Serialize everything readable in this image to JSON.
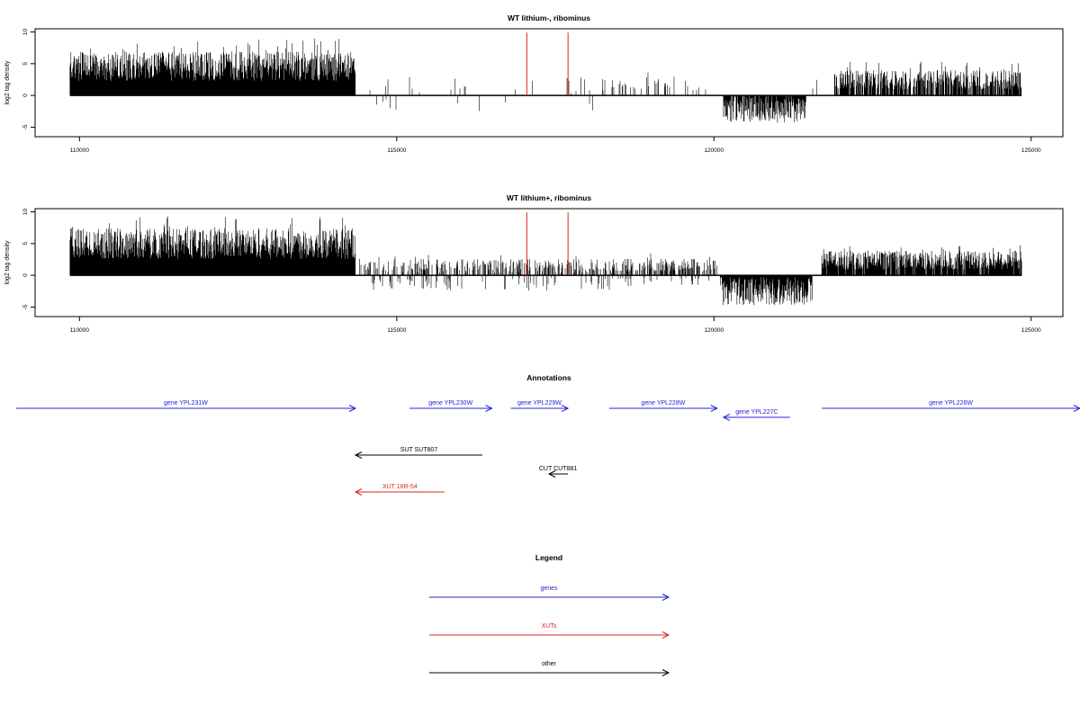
{
  "colors": {
    "axis": "#000000",
    "signal": "#000000",
    "marker": "#dd2222",
    "gene": "#2424d6",
    "xut": "#dd2222",
    "other": "#000000"
  },
  "chart_data": [
    {
      "type": "bar",
      "title": "WT lithium-, ribominus",
      "xlabel": "",
      "ylabel": "log2 tag density",
      "xlim": [
        109300,
        125500
      ],
      "ylim": [
        -6.5,
        10.5
      ],
      "xticks": [
        110000,
        115000,
        120000,
        125000
      ],
      "xtick_labels": [
        "110000",
        "115000",
        "120000",
        "125000"
      ],
      "yticks": [
        -5,
        0,
        5,
        10
      ],
      "ytick_labels": [
        "-5",
        "0",
        "5",
        "10"
      ],
      "markers": [
        117050,
        117700
      ],
      "segments": [
        {
          "start": 109850,
          "end": 114350,
          "mean": 4.6,
          "amp": 2.3,
          "sign": 1,
          "density": 1.0
        },
        {
          "start": 114400,
          "end": 118300,
          "mean": 1.6,
          "amp": 1.4,
          "sign": 1,
          "density": 0.03
        },
        {
          "start": 114400,
          "end": 118300,
          "mean": -1.5,
          "amp": 1.0,
          "sign": -1,
          "density": 0.02
        },
        {
          "start": 118350,
          "end": 120050,
          "mean": 1.9,
          "amp": 1.1,
          "sign": 1,
          "density": 0.12
        },
        {
          "start": 120150,
          "end": 121450,
          "mean": -2.3,
          "amp": 2.0,
          "sign": -1,
          "density": 0.9
        },
        {
          "start": 121500,
          "end": 121900,
          "mean": 1.6,
          "amp": 1.0,
          "sign": 1,
          "density": 0.05
        },
        {
          "start": 121900,
          "end": 124850,
          "mean": 2.5,
          "amp": 1.5,
          "sign": 1,
          "density": 0.8
        }
      ]
    },
    {
      "type": "bar",
      "title": "WT lithium+, ribominus",
      "xlabel": "",
      "ylabel": "log2 tag density",
      "xlim": [
        109300,
        125500
      ],
      "ylim": [
        -6.5,
        10.5
      ],
      "xticks": [
        110000,
        115000,
        120000,
        125000
      ],
      "xtick_labels": [
        "110000",
        "115000",
        "120000",
        "125000"
      ],
      "yticks": [
        -5,
        0,
        5,
        10
      ],
      "ytick_labels": [
        "-5",
        "0",
        "5",
        "10"
      ],
      "markers": [
        117050,
        117700
      ],
      "segments": [
        {
          "start": 109850,
          "end": 114350,
          "mean": 5.0,
          "amp": 2.4,
          "sign": 1,
          "density": 1.0
        },
        {
          "start": 114400,
          "end": 118400,
          "mean": 1.5,
          "amp": 1.1,
          "sign": 1,
          "density": 0.35
        },
        {
          "start": 114400,
          "end": 118400,
          "mean": -1.4,
          "amp": 1.0,
          "sign": -1,
          "density": 0.12
        },
        {
          "start": 118400,
          "end": 120050,
          "mean": 1.6,
          "amp": 1.0,
          "sign": 1,
          "density": 0.55
        },
        {
          "start": 118400,
          "end": 120050,
          "mean": -1.0,
          "amp": 0.7,
          "sign": -1,
          "density": 0.08
        },
        {
          "start": 120100,
          "end": 121550,
          "mean": -2.5,
          "amp": 2.2,
          "sign": -1,
          "density": 1.0
        },
        {
          "start": 121700,
          "end": 124850,
          "mean": 2.4,
          "amp": 1.5,
          "sign": 1,
          "density": 0.9
        }
      ]
    }
  ],
  "annotations": {
    "title": "Annotations",
    "xlim": [
      109300,
      125500
    ],
    "items": [
      {
        "label": "gene YPL231W",
        "kind": "gene",
        "start": 109000,
        "end": 114350,
        "dir": "right",
        "row": 0
      },
      {
        "label": "gene YPL230W",
        "kind": "gene",
        "start": 115200,
        "end": 116500,
        "dir": "right",
        "row": 0
      },
      {
        "label": "gene YPL229W",
        "kind": "gene",
        "start": 116800,
        "end": 117700,
        "dir": "right",
        "row": 0
      },
      {
        "label": "gene YPL228W",
        "kind": "gene",
        "start": 118350,
        "end": 120050,
        "dir": "right",
        "row": 0
      },
      {
        "label": "gene YPL227C",
        "kind": "gene",
        "start": 120150,
        "end": 121200,
        "dir": "left",
        "row": 1
      },
      {
        "label": "gene YPL226W",
        "kind": "gene",
        "start": 121700,
        "end": 125900,
        "dir": "right",
        "row": 0
      },
      {
        "label": "SUT SUT807",
        "kind": "other",
        "start": 114350,
        "end": 116350,
        "dir": "left",
        "row": 2
      },
      {
        "label": "CUT CUT881",
        "kind": "other",
        "start": 117400,
        "end": 117700,
        "dir": "left",
        "row": 3
      },
      {
        "label": "XUT 16R-54",
        "kind": "xut",
        "start": 114350,
        "end": 115750,
        "dir": "left",
        "row": 4
      }
    ]
  },
  "legend": {
    "title": "Legend",
    "items": [
      {
        "label": "genes",
        "kind": "gene"
      },
      {
        "label": "XUTs",
        "kind": "xut"
      },
      {
        "label": "other",
        "kind": "other"
      }
    ]
  }
}
